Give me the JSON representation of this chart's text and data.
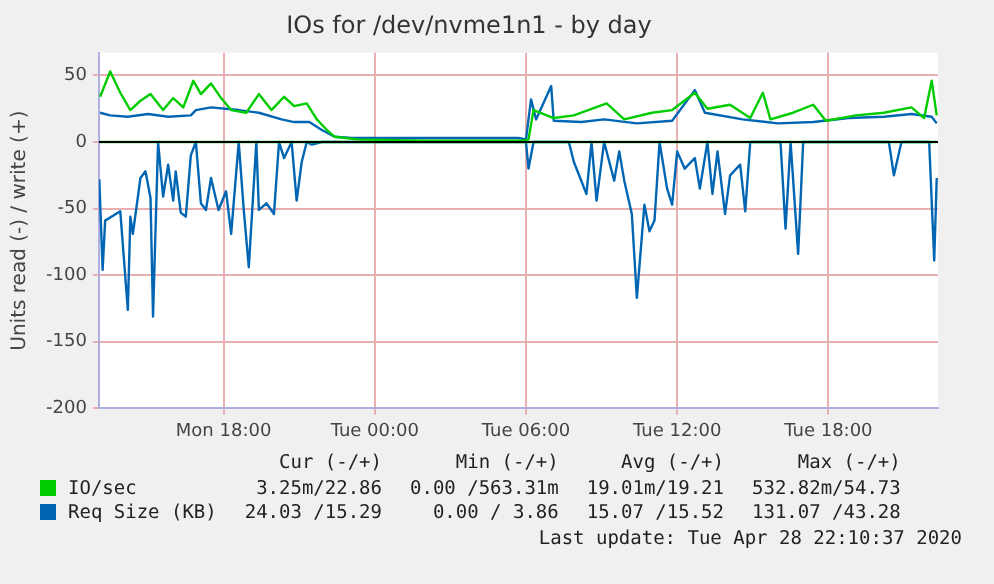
{
  "chart_data": {
    "type": "line",
    "title": "IOs for /dev/nvme1n1 - by day",
    "ylabel": "Units read (-) / write (+)",
    "xlim": [
      "2020-04-27T13:03",
      "2020-04-28T22:21"
    ],
    "xticks": [
      {
        "value": "2020-04-27T18:00",
        "label": "Mon 18:00"
      },
      {
        "value": "2020-04-28T00:00",
        "label": "Tue 00:00"
      },
      {
        "value": "2020-04-28T06:00",
        "label": "Tue 06:00"
      },
      {
        "value": "2020-04-28T12:00",
        "label": "Tue 12:00"
      },
      {
        "value": "2020-04-28T18:00",
        "label": "Tue 18:00"
      }
    ],
    "ylim": [
      -200,
      67
    ],
    "yticks": [
      -200,
      -150,
      -100,
      -50,
      0,
      50
    ],
    "grid": true,
    "legend": "bottom",
    "marker": "none",
    "line_style": "solid",
    "series": [
      {
        "name": "IO/sec",
        "color": "#00cc00",
        "x": [
          "2020-04-27T13:06",
          "2020-04-27T13:30",
          "2020-04-27T13:54",
          "2020-04-27T14:18",
          "2020-04-27T14:42",
          "2020-04-27T15:06",
          "2020-04-27T15:36",
          "2020-04-27T16:00",
          "2020-04-27T16:24",
          "2020-04-27T16:48",
          "2020-04-27T17:06",
          "2020-04-27T17:30",
          "2020-04-27T17:54",
          "2020-04-27T18:18",
          "2020-04-27T18:54",
          "2020-04-27T19:24",
          "2020-04-27T19:54",
          "2020-04-27T20:24",
          "2020-04-27T20:48",
          "2020-04-27T21:18",
          "2020-04-27T21:42",
          "2020-04-27T22:06",
          "2020-04-27T22:24",
          "2020-04-27T23:18",
          "2020-04-28T02:00",
          "2020-04-28T05:54",
          "2020-04-28T06:06",
          "2020-04-28T06:18",
          "2020-04-28T07:06",
          "2020-04-28T07:54",
          "2020-04-28T09:12",
          "2020-04-28T09:54",
          "2020-04-28T11:00",
          "2020-04-28T11:48",
          "2020-04-28T12:42",
          "2020-04-28T13:12",
          "2020-04-28T14:06",
          "2020-04-28T14:54",
          "2020-04-28T15:24",
          "2020-04-28T15:42",
          "2020-04-28T16:36",
          "2020-04-28T17:24",
          "2020-04-28T17:54",
          "2020-04-28T19:06",
          "2020-04-28T20:12",
          "2020-04-28T21:18",
          "2020-04-28T21:48",
          "2020-04-28T22:06",
          "2020-04-28T22:18"
        ],
        "values": [
          34,
          53,
          37,
          24,
          31,
          36,
          24,
          33,
          26,
          46,
          36,
          44,
          33,
          24,
          22,
          36,
          24,
          34,
          27,
          29,
          17,
          9,
          4,
          2,
          1,
          1,
          2,
          24,
          18,
          20,
          29,
          17,
          22,
          24,
          37,
          25,
          28,
          18,
          37,
          17,
          22,
          28,
          16,
          20,
          22,
          26,
          18,
          46,
          20
        ]
      },
      {
        "color": "#00cc00",
        "x": [
          "2020-04-27T13:06",
          "2020-04-28T22:18"
        ],
        "values": [
          0,
          0
        ]
      },
      {
        "name": "Req Size (KB)",
        "color": "#0066b3",
        "x": [
          "2020-04-27T13:06",
          "2020-04-27T13:30",
          "2020-04-27T14:12",
          "2020-04-27T15:00",
          "2020-04-27T15:48",
          "2020-04-27T16:42",
          "2020-04-27T16:54",
          "2020-04-27T17:30",
          "2020-04-27T18:36",
          "2020-04-27T19:24",
          "2020-04-27T20:18",
          "2020-04-27T20:48",
          "2020-04-27T21:24",
          "2020-04-27T21:54",
          "2020-04-27T22:24",
          "2020-04-27T23:06",
          "2020-04-28T03:30",
          "2020-04-28T05:42",
          "2020-04-28T06:00",
          "2020-04-28T06:12",
          "2020-04-28T06:24",
          "2020-04-28T07:00",
          "2020-04-28T07:06",
          "2020-04-28T08:12",
          "2020-04-28T09:06",
          "2020-04-28T10:24",
          "2020-04-28T11:48",
          "2020-04-28T12:42",
          "2020-04-28T13:06",
          "2020-04-28T14:36",
          "2020-04-28T16:00",
          "2020-04-28T17:24",
          "2020-04-28T18:48",
          "2020-04-28T20:12",
          "2020-04-28T21:18",
          "2020-04-28T22:06",
          "2020-04-28T22:18"
        ],
        "values": [
          22,
          20,
          19,
          21,
          19,
          20,
          24,
          26,
          24,
          22,
          17,
          15,
          15,
          9,
          4,
          3,
          3,
          3,
          2,
          32,
          17,
          42,
          16,
          15,
          17,
          14,
          16,
          39,
          22,
          17,
          14,
          15,
          18,
          19,
          21,
          19,
          14
        ]
      },
      {
        "color": "#0066b3",
        "x": [
          "2020-04-27T13:04",
          "2020-04-27T13:12",
          "2020-04-27T13:18",
          "2020-04-27T13:54",
          "2020-04-27T14:12",
          "2020-04-27T14:18",
          "2020-04-27T14:24",
          "2020-04-27T14:42",
          "2020-04-27T14:54",
          "2020-04-27T15:06",
          "2020-04-27T15:12",
          "2020-04-27T15:24",
          "2020-04-27T15:36",
          "2020-04-27T15:48",
          "2020-04-27T16:00",
          "2020-04-27T16:06",
          "2020-04-27T16:18",
          "2020-04-27T16:30",
          "2020-04-27T16:42",
          "2020-04-27T16:54",
          "2020-04-27T17:06",
          "2020-04-27T17:18",
          "2020-04-27T17:30",
          "2020-04-27T17:48",
          "2020-04-27T18:06",
          "2020-04-27T18:18",
          "2020-04-27T18:36",
          "2020-04-27T18:48",
          "2020-04-27T19:00",
          "2020-04-27T19:18",
          "2020-04-27T19:24",
          "2020-04-27T19:42",
          "2020-04-27T20:00",
          "2020-04-27T20:12",
          "2020-04-27T20:24",
          "2020-04-27T20:42",
          "2020-04-27T20:54",
          "2020-04-27T21:06",
          "2020-04-27T21:18",
          "2020-04-27T21:30",
          "2020-04-27T21:54",
          "2020-04-28T06:00",
          "2020-04-28T06:06",
          "2020-04-28T06:18",
          "2020-04-28T07:42",
          "2020-04-28T07:54",
          "2020-04-28T08:24",
          "2020-04-28T08:36",
          "2020-04-28T08:48",
          "2020-04-28T09:06",
          "2020-04-28T09:30",
          "2020-04-28T09:42",
          "2020-04-28T09:54",
          "2020-04-28T10:12",
          "2020-04-28T10:24",
          "2020-04-28T10:42",
          "2020-04-28T10:54",
          "2020-04-28T11:06",
          "2020-04-28T11:18",
          "2020-04-28T11:36",
          "2020-04-28T11:48",
          "2020-04-28T12:00",
          "2020-04-28T12:18",
          "2020-04-28T12:42",
          "2020-04-28T12:54",
          "2020-04-28T13:12",
          "2020-04-28T13:24",
          "2020-04-28T13:36",
          "2020-04-28T13:54",
          "2020-04-28T14:06",
          "2020-04-28T14:30",
          "2020-04-28T14:42",
          "2020-04-28T14:54",
          "2020-04-28T16:06",
          "2020-04-28T16:18",
          "2020-04-28T16:30",
          "2020-04-28T16:48",
          "2020-04-28T17:00",
          "2020-04-28T20:24",
          "2020-04-28T20:36",
          "2020-04-28T20:54",
          "2020-04-28T22:00",
          "2020-04-28T22:12",
          "2020-04-28T22:18"
        ],
        "values": [
          -28,
          -96,
          -59,
          -52,
          -126,
          -56,
          -69,
          -27,
          -22,
          -42,
          -131,
          0,
          -41,
          -17,
          -44,
          -22,
          -53,
          -56,
          -10,
          0,
          -46,
          -51,
          -27,
          -51,
          -37,
          -69,
          0,
          -51,
          -94,
          0,
          -51,
          -46,
          -54,
          0,
          -12,
          0,
          -44,
          -15,
          0,
          -2,
          0,
          0,
          -20,
          0,
          0,
          -15,
          -39,
          0,
          -44,
          0,
          -29,
          -7,
          -29,
          -54,
          -117,
          -47,
          -67,
          -59,
          0,
          -35,
          -47,
          -7,
          -20,
          -12,
          -35,
          0,
          -39,
          -7,
          -54,
          -25,
          -17,
          -52,
          0,
          0,
          -65,
          0,
          -84,
          0,
          0,
          -25,
          0,
          0,
          -89,
          -27
        ]
      }
    ],
    "annotations": [
      "Cur (-/+)",
      "Min (-/+)",
      "Avg (-/+)",
      "Max (-/+)",
      "3.25m/22.86",
      "0.00 /563.31m",
      "19.01m/19.21",
      "532.82m/54.73",
      "24.03 /15.29",
      "0.00 / 3.86",
      "15.07 /15.52",
      "131.07 /43.28",
      "Last update: Tue Apr 28 22:10:37 2020"
    ]
  }
}
